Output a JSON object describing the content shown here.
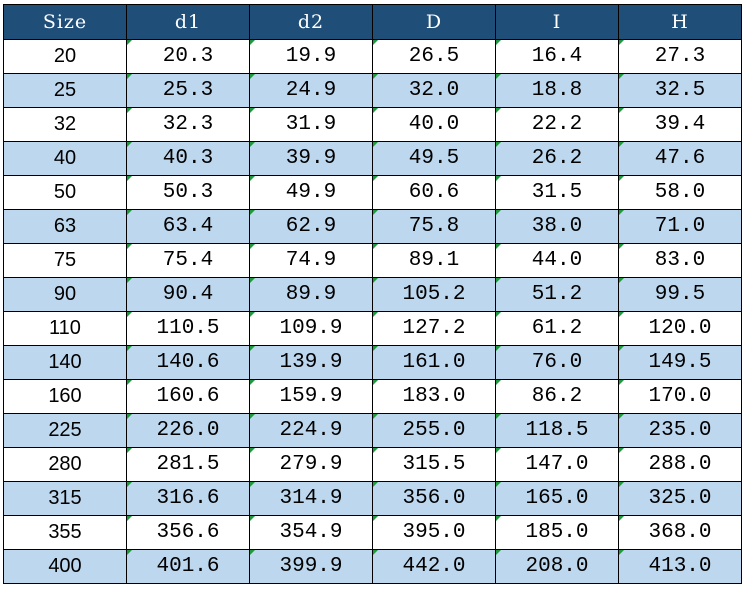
{
  "table": {
    "headers": [
      "Size",
      "d1",
      "d2",
      "D",
      "I",
      "H"
    ],
    "rows": [
      [
        "20",
        "20.3",
        "19.9",
        "26.5",
        "16.4",
        "27.3"
      ],
      [
        "25",
        "25.3",
        "24.9",
        "32.0",
        "18.8",
        "32.5"
      ],
      [
        "32",
        "32.3",
        "31.9",
        "40.0",
        "22.2",
        "39.4"
      ],
      [
        "40",
        "40.3",
        "39.9",
        "49.5",
        "26.2",
        "47.6"
      ],
      [
        "50",
        "50.3",
        "49.9",
        "60.6",
        "31.5",
        "58.0"
      ],
      [
        "63",
        "63.4",
        "62.9",
        "75.8",
        "38.0",
        "71.0"
      ],
      [
        "75",
        "75.4",
        "74.9",
        "89.1",
        "44.0",
        "83.0"
      ],
      [
        "90",
        "90.4",
        "89.9",
        "105.2",
        "51.2",
        "99.5"
      ],
      [
        "110",
        "110.5",
        "109.9",
        "127.2",
        "61.2",
        "120.0"
      ],
      [
        "140",
        "140.6",
        "139.9",
        "161.0",
        "76.0",
        "149.5"
      ],
      [
        "160",
        "160.6",
        "159.9",
        "183.0",
        "86.2",
        "170.0"
      ],
      [
        "225",
        "226.0",
        "224.9",
        "255.0",
        "118.5",
        "235.0"
      ],
      [
        "280",
        "281.5",
        "279.9",
        "315.5",
        "147.0",
        "288.0"
      ],
      [
        "315",
        "316.6",
        "314.9",
        "356.0",
        "165.0",
        "325.0"
      ],
      [
        "355",
        "356.6",
        "354.9",
        "395.0",
        "185.0",
        "368.0"
      ],
      [
        "400",
        "401.6",
        "399.9",
        "442.0",
        "208.0",
        "413.0"
      ]
    ]
  },
  "colors": {
    "header_bg": "#1f4e79",
    "header_text": "#ffffff",
    "alt_row_bg": "#bdd7ee",
    "row_bg": "#ffffff",
    "indicator": "#1e9a3c"
  }
}
